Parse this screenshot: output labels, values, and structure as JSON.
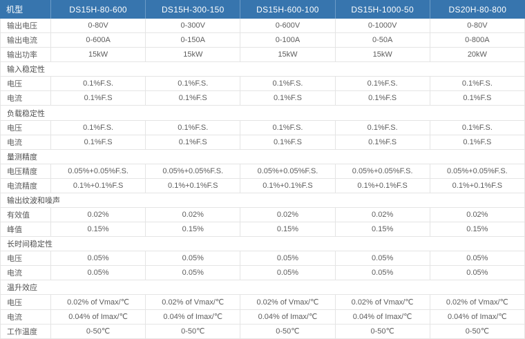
{
  "colors": {
    "header_bg": "#3775ae",
    "header_text": "#ffffff",
    "header_divider": "#6d9cc7",
    "border": "#e4e4e4",
    "text": "#5c5c5c",
    "section_text": "#4f4f4f",
    "row_bg": "#ffffff"
  },
  "table": {
    "header": {
      "label": "机型",
      "models": [
        "DS15H-80-600",
        "DS15H-300-150",
        "DS15H-600-100",
        "DS15H-1000-50",
        "DS20H-80-800"
      ]
    },
    "rows": [
      {
        "type": "data",
        "label": "输出电压",
        "values": [
          "0-80V",
          "0-300V",
          "0-600V",
          "0-1000V",
          "0-80V"
        ]
      },
      {
        "type": "data",
        "label": "输出电流",
        "values": [
          "0-600A",
          "0-150A",
          "0-100A",
          "0-50A",
          "0-800A"
        ]
      },
      {
        "type": "data",
        "label": "输出功率",
        "values": [
          "15kW",
          "15kW",
          "15kW",
          "15kW",
          "20kW"
        ]
      },
      {
        "type": "section",
        "label": "输入稳定性"
      },
      {
        "type": "data",
        "label": "电压",
        "values": [
          "0.1%F.S.",
          "0.1%F.S.",
          "0.1%F.S.",
          "0.1%F.S.",
          "0.1%F.S."
        ]
      },
      {
        "type": "data",
        "label": "电流",
        "values": [
          "0.1%F.S",
          "0.1%F.S",
          "0.1%F.S",
          "0.1%F.S",
          "0.1%F.S"
        ]
      },
      {
        "type": "section",
        "label": "负载稳定性"
      },
      {
        "type": "data",
        "label": "电压",
        "values": [
          "0.1%F.S.",
          "0.1%F.S.",
          "0.1%F.S.",
          "0.1%F.S.",
          "0.1%F.S."
        ]
      },
      {
        "type": "data",
        "label": "电流",
        "values": [
          "0.1%F.S",
          "0.1%F.S",
          "0.1%F.S",
          "0.1%F.S",
          "0.1%F.S"
        ]
      },
      {
        "type": "section",
        "label": "量测精度"
      },
      {
        "type": "data",
        "label": "电压精度",
        "values": [
          "0.05%+0.05%F.S.",
          "0.05%+0.05%F.S.",
          "0.05%+0.05%F.S.",
          "0.05%+0.05%F.S.",
          "0.05%+0.05%F.S."
        ]
      },
      {
        "type": "data",
        "label": "电流精度",
        "values": [
          "0.1%+0.1%F.S",
          "0.1%+0.1%F.S",
          "0.1%+0.1%F.S",
          "0.1%+0.1%F.S",
          "0.1%+0.1%F.S"
        ]
      },
      {
        "type": "section",
        "label": "输出纹波和噪声"
      },
      {
        "type": "data",
        "label": "有效值",
        "values": [
          "0.02%",
          "0.02%",
          "0.02%",
          "0.02%",
          "0.02%"
        ]
      },
      {
        "type": "data",
        "label": "峰值",
        "values": [
          "0.15%",
          "0.15%",
          "0.15%",
          "0.15%",
          "0.15%"
        ]
      },
      {
        "type": "section",
        "label": "长时间稳定性"
      },
      {
        "type": "data",
        "label": "电压",
        "values": [
          "0.05%",
          "0.05%",
          "0.05%",
          "0.05%",
          "0.05%"
        ]
      },
      {
        "type": "data",
        "label": "电流",
        "values": [
          "0.05%",
          "0.05%",
          "0.05%",
          "0.05%",
          "0.05%"
        ]
      },
      {
        "type": "section",
        "label": "温升效应"
      },
      {
        "type": "data",
        "label": "电压",
        "values": [
          "0.02% of Vmax/℃",
          "0.02% of Vmax/℃",
          "0.02% of Vmax/℃",
          "0.02% of Vmax/℃",
          "0.02% of Vmax/℃"
        ]
      },
      {
        "type": "data",
        "label": "电流",
        "values": [
          "0.04% of Imax/℃",
          "0.04% of Imax/℃",
          "0.04% of Imax/℃",
          "0.04% of Imax/℃",
          "0.04% of Imax/℃"
        ]
      },
      {
        "type": "data",
        "label": "工作温度",
        "values": [
          "0-50℃",
          "0-50℃",
          "0-50℃",
          "0-50℃",
          "0-50℃"
        ]
      }
    ]
  }
}
